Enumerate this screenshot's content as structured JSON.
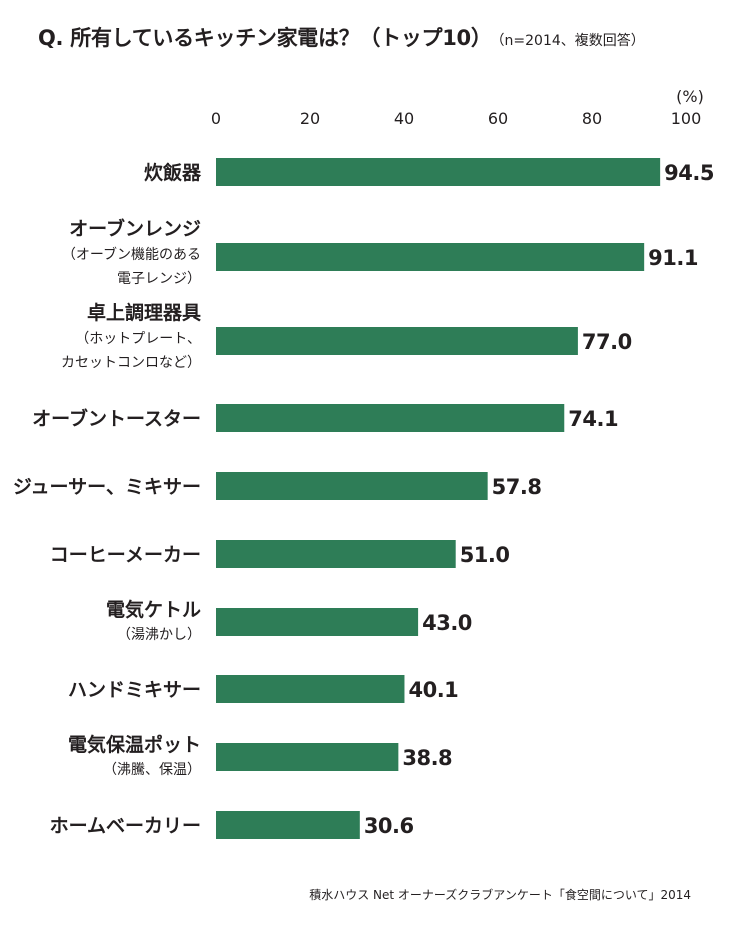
{
  "title": "Q. 所有しているキッチン家電は？（トップ10）",
  "title_note": "（n=2014、複数回答）",
  "unit": "(%)",
  "source": "積水ハウス Net オーナーズクラブアンケート「食空間について」2014",
  "colors": {
    "bar": "#2e7d57",
    "text": "#231f20"
  },
  "chart_data": {
    "type": "bar",
    "orientation": "horizontal",
    "xlim": [
      0,
      100
    ],
    "xticks": [
      0,
      20,
      40,
      60,
      80,
      100
    ],
    "grid": false,
    "categories": [
      {
        "label": "炊飯器",
        "sub": [],
        "value": 94.5,
        "value_label": "94.5"
      },
      {
        "label": "オーブンレンジ",
        "sub": [
          "（オーブン機能のある",
          "電子レンジ）"
        ],
        "value": 91.1,
        "value_label": "91.1"
      },
      {
        "label": "卓上調理器具",
        "sub": [
          "（ホットプレート、",
          "カセットコンロなど）"
        ],
        "value": 77.0,
        "value_label": "77.0"
      },
      {
        "label": "オーブントースター",
        "sub": [],
        "value": 74.1,
        "value_label": "74.1"
      },
      {
        "label": "ジューサー、ミキサー",
        "sub": [],
        "value": 57.8,
        "value_label": "57.8"
      },
      {
        "label": "コーヒーメーカー",
        "sub": [],
        "value": 51.0,
        "value_label": "51.0"
      },
      {
        "label": "電気ケトル",
        "sub": [
          "（湯沸かし）"
        ],
        "value": 43.0,
        "value_label": "43.0"
      },
      {
        "label": "ハンドミキサー",
        "sub": [],
        "value": 40.1,
        "value_label": "40.1"
      },
      {
        "label": "電気保温ポット",
        "sub": [
          "（沸騰、保温）"
        ],
        "value": 38.8,
        "value_label": "38.8"
      },
      {
        "label": "ホームベーカリー",
        "sub": [],
        "value": 30.6,
        "value_label": "30.6"
      }
    ]
  }
}
